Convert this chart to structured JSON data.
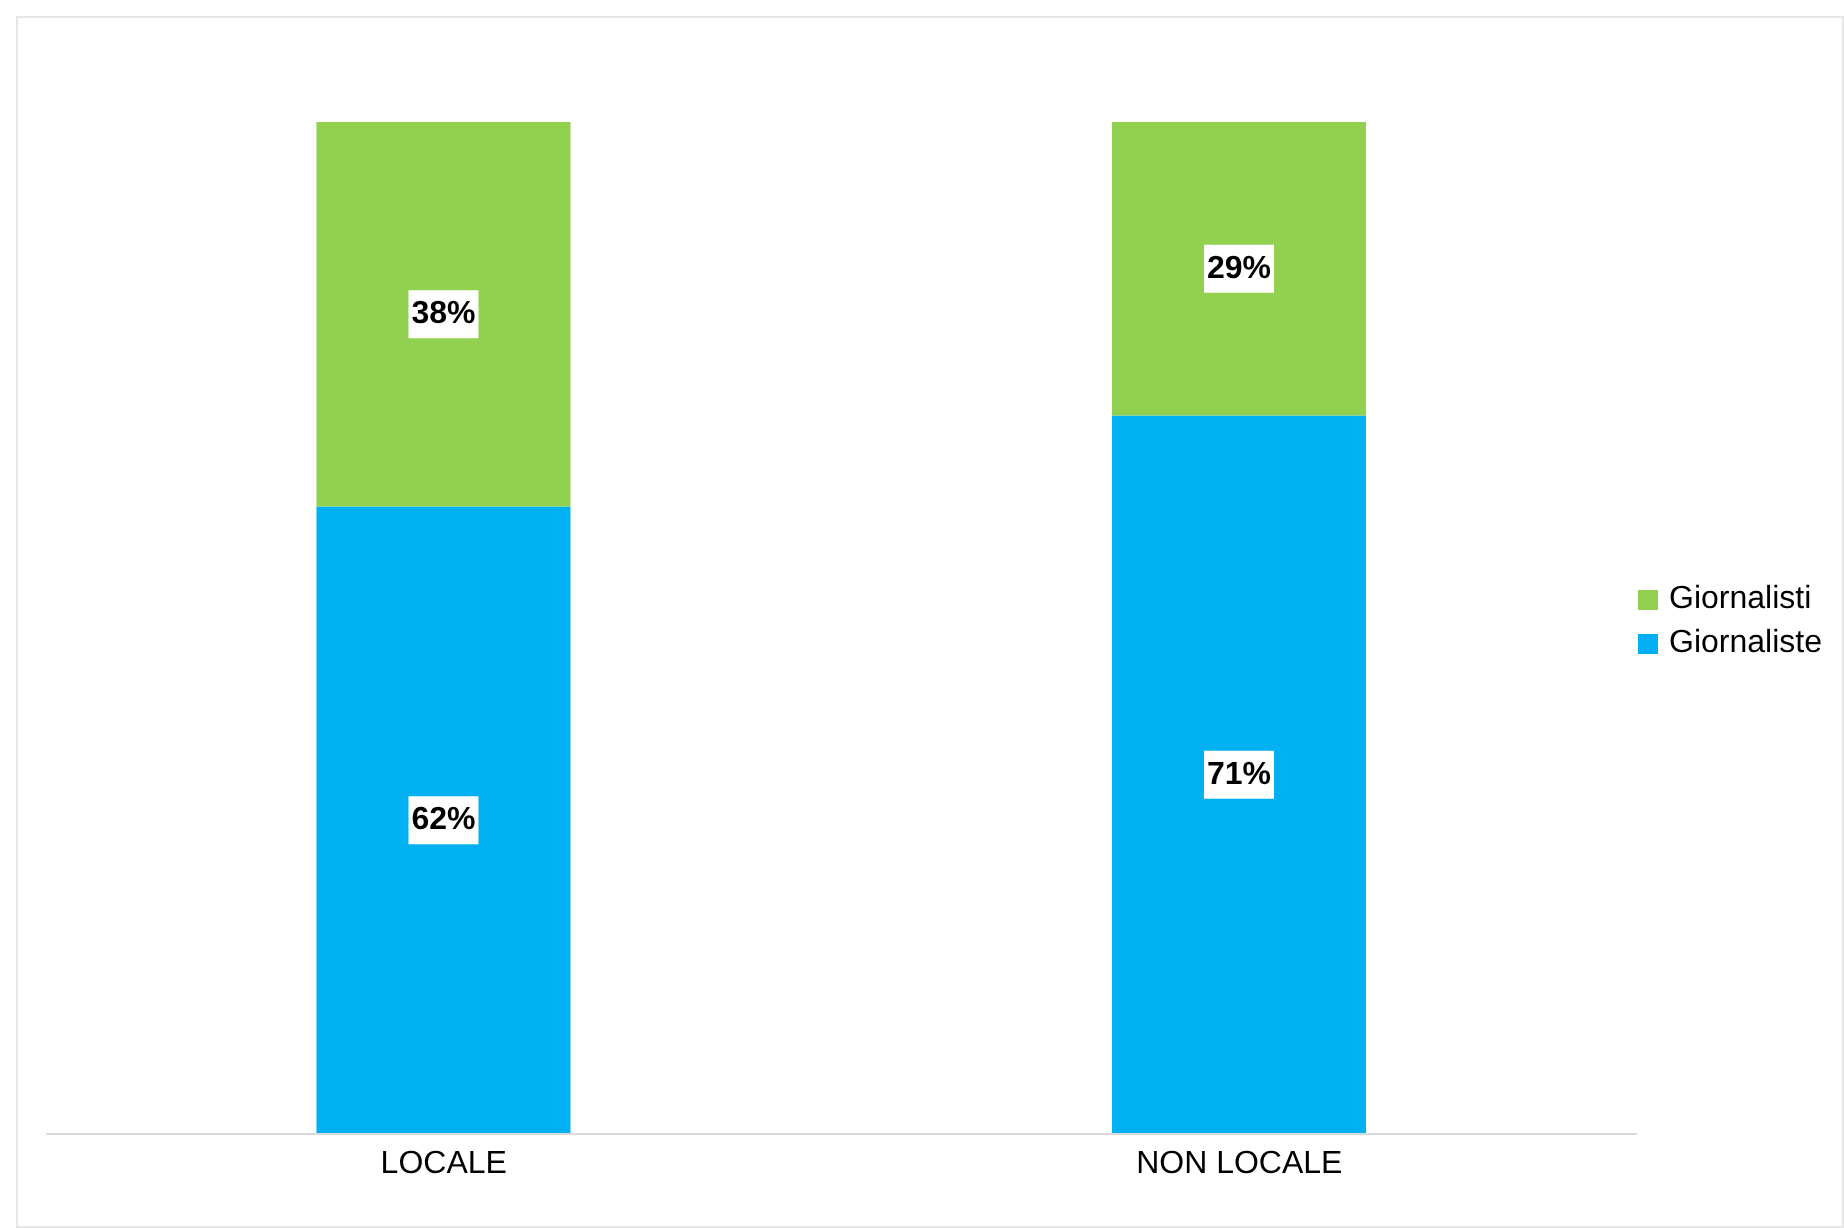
{
  "chart_data": {
    "type": "bar",
    "stacked": true,
    "categories": [
      "LOCALE",
      "NON LOCALE"
    ],
    "series": [
      {
        "name": "Giornaliste",
        "color": "#00b0f0",
        "values": [
          62,
          71
        ],
        "value_labels": [
          "62%",
          "71%"
        ]
      },
      {
        "name": "Giornalisti",
        "color": "#92d050",
        "values": [
          38,
          29
        ],
        "value_labels": [
          "38%",
          "29%"
        ]
      }
    ],
    "tick_labels": "x",
    "grid": false,
    "legend": "right"
  }
}
